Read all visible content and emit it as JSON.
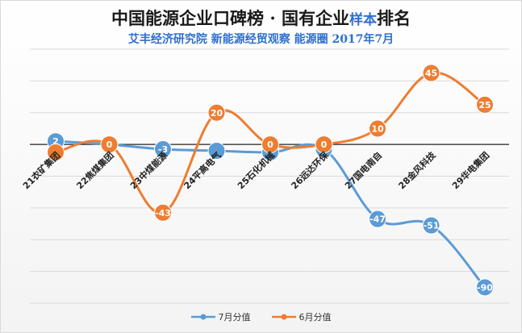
{
  "title": "中国能源企业口碑榜 · 国有企业",
  "title_highlight": "样本",
  "title_suffix": "排名",
  "subtitle": "艾丰经济研究院 新能源经贸观察 能源圈 2017年7月",
  "chart_data": {
    "type": "line",
    "categories": [
      "21衣矿集团",
      "22焦煤集团",
      "23中煤能源",
      "24平高电气",
      "25石化机械",
      "26远达环保",
      "27国电南自",
      "28金风科技",
      "29华电集团"
    ],
    "series": [
      {
        "name": "7月分值",
        "color": "#5b9bd5",
        "values": [
          2,
          0,
          -3,
          -4,
          -5,
          -3,
          -47,
          -51,
          -90
        ],
        "labels": [
          "2",
          "",
          "-3",
          "",
          "",
          "",
          "-47",
          "-51",
          "-90"
        ]
      },
      {
        "name": "6月分值",
        "color": "#ed7d31",
        "values": [
          -5,
          0,
          -43,
          20,
          0,
          0,
          10,
          45,
          25
        ],
        "labels": [
          "",
          "0",
          "-43",
          "20",
          "0",
          "0",
          "10",
          "45",
          "25"
        ]
      }
    ],
    "ylim": [
      -100,
      60
    ],
    "grid": true,
    "legend_position": "bottom",
    "xlabel": "",
    "ylabel": ""
  }
}
